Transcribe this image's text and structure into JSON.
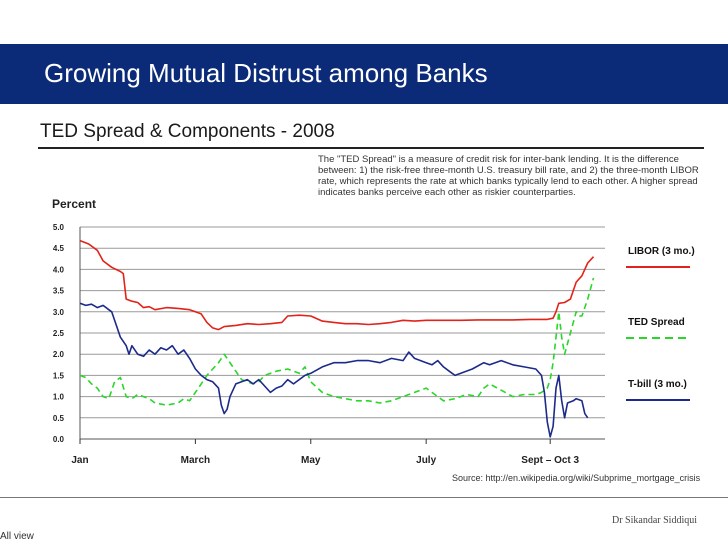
{
  "slide": {
    "title": "Growing Mutual Distrust among Banks",
    "chart_heading": "TED Spread & Components - 2008",
    "note": "The \"TED Spread\" is a measure of credit risk for inter-bank lending. It is the difference between: 1) the risk-free three-month U.S. treasury bill rate, and 2) the three-month LIBOR rate, which represents the rate at which banks typically lend to each other. A higher spread indicates banks perceive each other as riskier counterparties.",
    "source": "Source: http://en.wikipedia.org/wiki/Subprime_mortgage_crisis",
    "author": "Dr Sikandar Siddiqui",
    "footer_label": "All view"
  },
  "colors": {
    "title_bar": "#0b2a78",
    "libor": "#e2231a",
    "ted": "#29d629",
    "tbill": "#1c2a8a",
    "grid": "#9a9a9a"
  },
  "chart_data": {
    "type": "line",
    "title": "TED Spread & Components - 2008",
    "ylabel": "Percent",
    "xlabel": "",
    "ylim": [
      0,
      5
    ],
    "yticks": [
      "0.0",
      "0.5",
      "1.0",
      "1.5",
      "2.0",
      "2.5",
      "3.0",
      "3.5",
      "4.0",
      "4.5",
      "5.0"
    ],
    "xticks": [
      {
        "label": "Jan",
        "t": 0.0
      },
      {
        "label": "March",
        "t": 2.0
      },
      {
        "label": "May",
        "t": 4.0
      },
      {
        "label": "July",
        "t": 6.0
      },
      {
        "label": "Sept – Oct 3",
        "t": 8.15
      }
    ],
    "xlim": [
      0,
      9.1
    ],
    "legend_position": "right",
    "series": [
      {
        "name": "LIBOR (3 mo.)",
        "key": "libor",
        "style": "solid",
        "points": [
          [
            0,
            4.68
          ],
          [
            0.15,
            4.6
          ],
          [
            0.3,
            4.45
          ],
          [
            0.4,
            4.2
          ],
          [
            0.55,
            4.05
          ],
          [
            0.7,
            3.95
          ],
          [
            0.75,
            3.9
          ],
          [
            0.8,
            3.3
          ],
          [
            0.9,
            3.25
          ],
          [
            1.0,
            3.22
          ],
          [
            1.1,
            3.1
          ],
          [
            1.2,
            3.12
          ],
          [
            1.3,
            3.05
          ],
          [
            1.5,
            3.1
          ],
          [
            1.7,
            3.08
          ],
          [
            1.9,
            3.05
          ],
          [
            2.0,
            3.0
          ],
          [
            2.1,
            2.95
          ],
          [
            2.2,
            2.75
          ],
          [
            2.3,
            2.62
          ],
          [
            2.4,
            2.58
          ],
          [
            2.5,
            2.65
          ],
          [
            2.7,
            2.68
          ],
          [
            2.9,
            2.72
          ],
          [
            3.1,
            2.7
          ],
          [
            3.3,
            2.72
          ],
          [
            3.5,
            2.75
          ],
          [
            3.6,
            2.9
          ],
          [
            3.8,
            2.92
          ],
          [
            4.0,
            2.9
          ],
          [
            4.2,
            2.78
          ],
          [
            4.4,
            2.75
          ],
          [
            4.6,
            2.72
          ],
          [
            4.8,
            2.72
          ],
          [
            5.0,
            2.7
          ],
          [
            5.2,
            2.72
          ],
          [
            5.4,
            2.75
          ],
          [
            5.6,
            2.8
          ],
          [
            5.8,
            2.78
          ],
          [
            6.0,
            2.8
          ],
          [
            6.3,
            2.8
          ],
          [
            6.6,
            2.8
          ],
          [
            6.9,
            2.81
          ],
          [
            7.2,
            2.81
          ],
          [
            7.5,
            2.81
          ],
          [
            7.8,
            2.82
          ],
          [
            8.0,
            2.82
          ],
          [
            8.1,
            2.82
          ],
          [
            8.2,
            2.85
          ],
          [
            8.25,
            3.0
          ],
          [
            8.3,
            3.2
          ],
          [
            8.4,
            3.22
          ],
          [
            8.5,
            3.3
          ],
          [
            8.6,
            3.7
          ],
          [
            8.7,
            3.85
          ],
          [
            8.8,
            4.15
          ],
          [
            8.9,
            4.3
          ]
        ]
      },
      {
        "name": "TED Spread",
        "key": "ted",
        "style": "dashed",
        "points": [
          [
            0,
            1.5
          ],
          [
            0.1,
            1.45
          ],
          [
            0.2,
            1.3
          ],
          [
            0.3,
            1.2
          ],
          [
            0.4,
            1.0
          ],
          [
            0.5,
            0.95
          ],
          [
            0.6,
            1.35
          ],
          [
            0.7,
            1.45
          ],
          [
            0.8,
            1.0
          ],
          [
            0.9,
            0.95
          ],
          [
            1.0,
            1.05
          ],
          [
            1.1,
            1.0
          ],
          [
            1.2,
            0.95
          ],
          [
            1.3,
            0.85
          ],
          [
            1.5,
            0.8
          ],
          [
            1.7,
            0.85
          ],
          [
            1.8,
            0.95
          ],
          [
            1.9,
            0.9
          ],
          [
            2.0,
            1.1
          ],
          [
            2.1,
            1.3
          ],
          [
            2.2,
            1.5
          ],
          [
            2.4,
            1.8
          ],
          [
            2.5,
            2.0
          ],
          [
            2.6,
            1.8
          ],
          [
            2.7,
            1.6
          ],
          [
            2.8,
            1.4
          ],
          [
            3.0,
            1.3
          ],
          [
            3.1,
            1.35
          ],
          [
            3.2,
            1.5
          ],
          [
            3.4,
            1.6
          ],
          [
            3.6,
            1.65
          ],
          [
            3.8,
            1.55
          ],
          [
            3.9,
            1.7
          ],
          [
            4.0,
            1.35
          ],
          [
            4.2,
            1.1
          ],
          [
            4.4,
            1.0
          ],
          [
            4.6,
            0.95
          ],
          [
            4.8,
            0.9
          ],
          [
            5.0,
            0.9
          ],
          [
            5.2,
            0.85
          ],
          [
            5.4,
            0.9
          ],
          [
            5.6,
            1.0
          ],
          [
            5.8,
            1.1
          ],
          [
            6.0,
            1.2
          ],
          [
            6.2,
            1.0
          ],
          [
            6.3,
            0.9
          ],
          [
            6.5,
            0.95
          ],
          [
            6.7,
            1.05
          ],
          [
            6.9,
            1.0
          ],
          [
            7.0,
            1.2
          ],
          [
            7.1,
            1.3
          ],
          [
            7.3,
            1.15
          ],
          [
            7.5,
            1.0
          ],
          [
            7.7,
            1.05
          ],
          [
            7.9,
            1.05
          ],
          [
            8.0,
            1.1
          ],
          [
            8.1,
            1.2
          ],
          [
            8.15,
            1.4
          ],
          [
            8.2,
            1.8
          ],
          [
            8.25,
            2.4
          ],
          [
            8.3,
            3.0
          ],
          [
            8.35,
            2.4
          ],
          [
            8.4,
            2.0
          ],
          [
            8.5,
            2.5
          ],
          [
            8.6,
            3.0
          ],
          [
            8.65,
            2.9
          ],
          [
            8.7,
            2.9
          ],
          [
            8.8,
            3.3
          ],
          [
            8.9,
            3.8
          ]
        ]
      },
      {
        "name": "T-bill (3 mo.)",
        "key": "tbill",
        "style": "solid",
        "points": [
          [
            0,
            3.2
          ],
          [
            0.1,
            3.15
          ],
          [
            0.2,
            3.18
          ],
          [
            0.3,
            3.1
          ],
          [
            0.4,
            3.15
          ],
          [
            0.5,
            3.05
          ],
          [
            0.55,
            3.0
          ],
          [
            0.6,
            2.8
          ],
          [
            0.7,
            2.4
          ],
          [
            0.8,
            2.2
          ],
          [
            0.85,
            2.0
          ],
          [
            0.9,
            2.2
          ],
          [
            1.0,
            2.0
          ],
          [
            1.1,
            1.95
          ],
          [
            1.2,
            2.1
          ],
          [
            1.3,
            2.0
          ],
          [
            1.4,
            2.15
          ],
          [
            1.5,
            2.1
          ],
          [
            1.6,
            2.2
          ],
          [
            1.7,
            2.0
          ],
          [
            1.8,
            2.1
          ],
          [
            1.9,
            1.9
          ],
          [
            2.0,
            1.65
          ],
          [
            2.1,
            1.5
          ],
          [
            2.2,
            1.4
          ],
          [
            2.3,
            1.35
          ],
          [
            2.4,
            1.2
          ],
          [
            2.45,
            0.8
          ],
          [
            2.5,
            0.6
          ],
          [
            2.55,
            0.7
          ],
          [
            2.6,
            1.0
          ],
          [
            2.7,
            1.3
          ],
          [
            2.9,
            1.4
          ],
          [
            3.0,
            1.3
          ],
          [
            3.1,
            1.4
          ],
          [
            3.2,
            1.25
          ],
          [
            3.3,
            1.1
          ],
          [
            3.4,
            1.2
          ],
          [
            3.5,
            1.25
          ],
          [
            3.6,
            1.4
          ],
          [
            3.7,
            1.3
          ],
          [
            3.8,
            1.4
          ],
          [
            3.9,
            1.5
          ],
          [
            4.0,
            1.55
          ],
          [
            4.2,
            1.7
          ],
          [
            4.4,
            1.8
          ],
          [
            4.6,
            1.8
          ],
          [
            4.8,
            1.85
          ],
          [
            5.0,
            1.85
          ],
          [
            5.2,
            1.8
          ],
          [
            5.4,
            1.9
          ],
          [
            5.6,
            1.85
          ],
          [
            5.7,
            2.05
          ],
          [
            5.8,
            1.9
          ],
          [
            6.0,
            1.8
          ],
          [
            6.1,
            1.75
          ],
          [
            6.2,
            1.85
          ],
          [
            6.3,
            1.7
          ],
          [
            6.4,
            1.6
          ],
          [
            6.5,
            1.5
          ],
          [
            6.6,
            1.55
          ],
          [
            6.8,
            1.65
          ],
          [
            7.0,
            1.8
          ],
          [
            7.1,
            1.75
          ],
          [
            7.3,
            1.85
          ],
          [
            7.5,
            1.75
          ],
          [
            7.7,
            1.7
          ],
          [
            7.9,
            1.65
          ],
          [
            8.0,
            1.5
          ],
          [
            8.05,
            1.1
          ],
          [
            8.1,
            0.4
          ],
          [
            8.15,
            0.05
          ],
          [
            8.2,
            0.3
          ],
          [
            8.25,
            1.2
          ],
          [
            8.3,
            1.5
          ],
          [
            8.35,
            0.9
          ],
          [
            8.4,
            0.5
          ],
          [
            8.45,
            0.85
          ],
          [
            8.55,
            0.9
          ],
          [
            8.6,
            0.95
          ],
          [
            8.7,
            0.9
          ],
          [
            8.75,
            0.6
          ],
          [
            8.8,
            0.5
          ]
        ]
      }
    ]
  }
}
